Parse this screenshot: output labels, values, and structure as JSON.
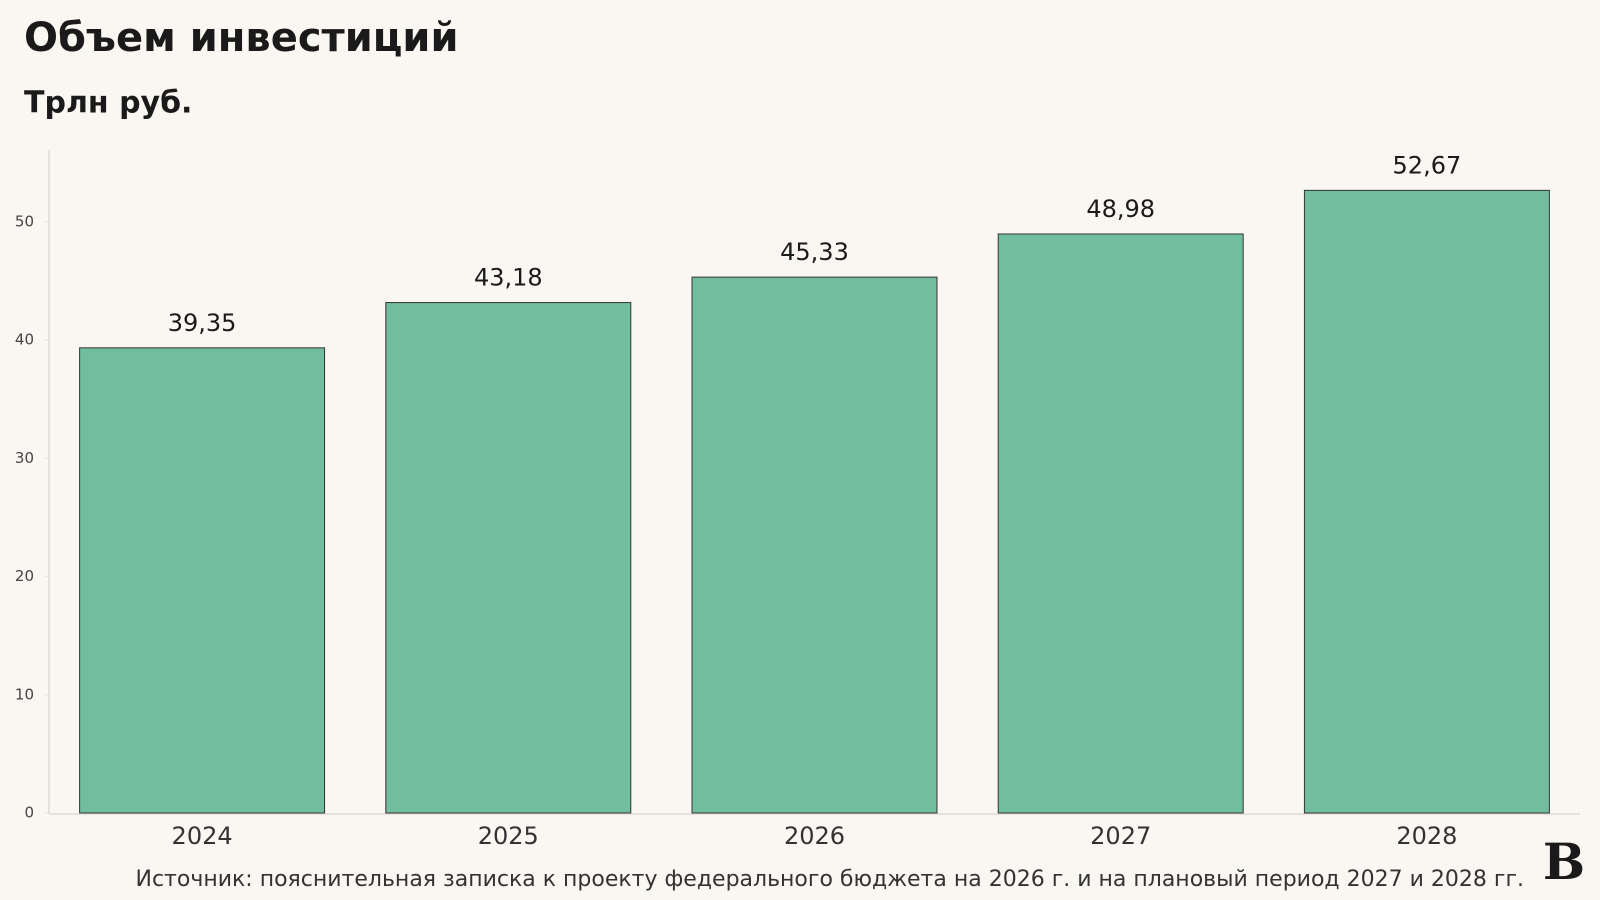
{
  "chart_data": {
    "type": "bar",
    "title": "Объем инвестиций",
    "subtitle": "Трлн руб.",
    "categories": [
      "2024",
      "2025",
      "2026",
      "2027",
      "2028"
    ],
    "values": [
      39.35,
      43.18,
      45.33,
      48.98,
      52.67
    ],
    "value_labels": [
      "39,35",
      "43,18",
      "45,33",
      "48,98",
      "52,67"
    ],
    "color": "#72bd9e",
    "ylim": [
      0,
      56
    ],
    "yticks": [
      0,
      10,
      20,
      30,
      40,
      50
    ],
    "grid": false,
    "source": "Источник: пояснительная записка к проекту федерального бюджета на 2026 г. и на плановый период 2027 и 2028 гг.",
    "logo": "В"
  }
}
